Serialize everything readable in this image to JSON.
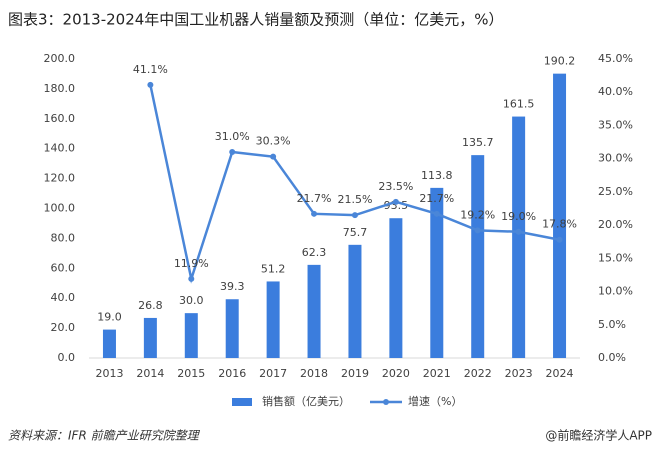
{
  "chart_data": {
    "type": "bar-line",
    "title": "图表3：2013-2024年中国工业机器人销量额及预测（单位：亿美元，%）",
    "categories": [
      "2013",
      "2014",
      "2015",
      "2016",
      "2017",
      "2018",
      "2019",
      "2020",
      "2021",
      "2022",
      "2023",
      "2024"
    ],
    "series": [
      {
        "name": "销售额（亿美元）",
        "type": "bar",
        "color": "#3b7ddd",
        "values": [
          19.0,
          26.8,
          30.0,
          39.3,
          51.2,
          62.3,
          75.7,
          93.5,
          113.8,
          135.7,
          161.5,
          190.2
        ],
        "value_labels": [
          "19.0",
          "26.8",
          "30.0",
          "39.3",
          "51.2",
          "62.3",
          "75.7",
          "93.5",
          "113.8",
          "135.7",
          "161.5",
          "190.2"
        ]
      },
      {
        "name": "增速（%）",
        "type": "line",
        "axis": "y2",
        "color": "#4a86d8",
        "values": [
          null,
          41.1,
          11.9,
          31.0,
          30.3,
          21.7,
          21.5,
          23.5,
          21.7,
          19.2,
          19.0,
          17.8
        ],
        "value_labels": [
          null,
          "41.1%",
          "11.9%",
          "31.0%",
          "30.3%",
          "21.7%",
          "21.5%",
          "23.5%",
          "21.7%",
          "19.2%",
          "19.0%",
          "17.8%"
        ]
      }
    ],
    "ylim": [
      0,
      200
    ],
    "yticks": [
      {
        "value": 0,
        "label": "0.0"
      },
      {
        "value": 20,
        "label": "20.0"
      },
      {
        "value": 40,
        "label": "40.0"
      },
      {
        "value": 60,
        "label": "60.0"
      },
      {
        "value": 80,
        "label": "80.0"
      },
      {
        "value": 100,
        "label": "100.0"
      },
      {
        "value": 120,
        "label": "120.0"
      },
      {
        "value": 140,
        "label": "140.0"
      },
      {
        "value": 160,
        "label": "160.0"
      },
      {
        "value": 180,
        "label": "180.0"
      },
      {
        "value": 200,
        "label": "200.0"
      }
    ],
    "y2lim": [
      0,
      45
    ],
    "y2ticks": [
      {
        "value": 0,
        "label": "0.0%"
      },
      {
        "value": 5,
        "label": "5.0%"
      },
      {
        "value": 10,
        "label": "10.0%"
      },
      {
        "value": 15,
        "label": "15.0%"
      },
      {
        "value": 20,
        "label": "20.0%"
      },
      {
        "value": 25,
        "label": "25.0%"
      },
      {
        "value": 30,
        "label": "30.0%"
      },
      {
        "value": 35,
        "label": "35.0%"
      },
      {
        "value": 40,
        "label": "40.0%"
      },
      {
        "value": 45,
        "label": "45.0%"
      }
    ],
    "legend": "bottom",
    "source": "资料来源：IFR 前瞻产业研究院整理",
    "credit": "@前瞻经济学人APP"
  }
}
